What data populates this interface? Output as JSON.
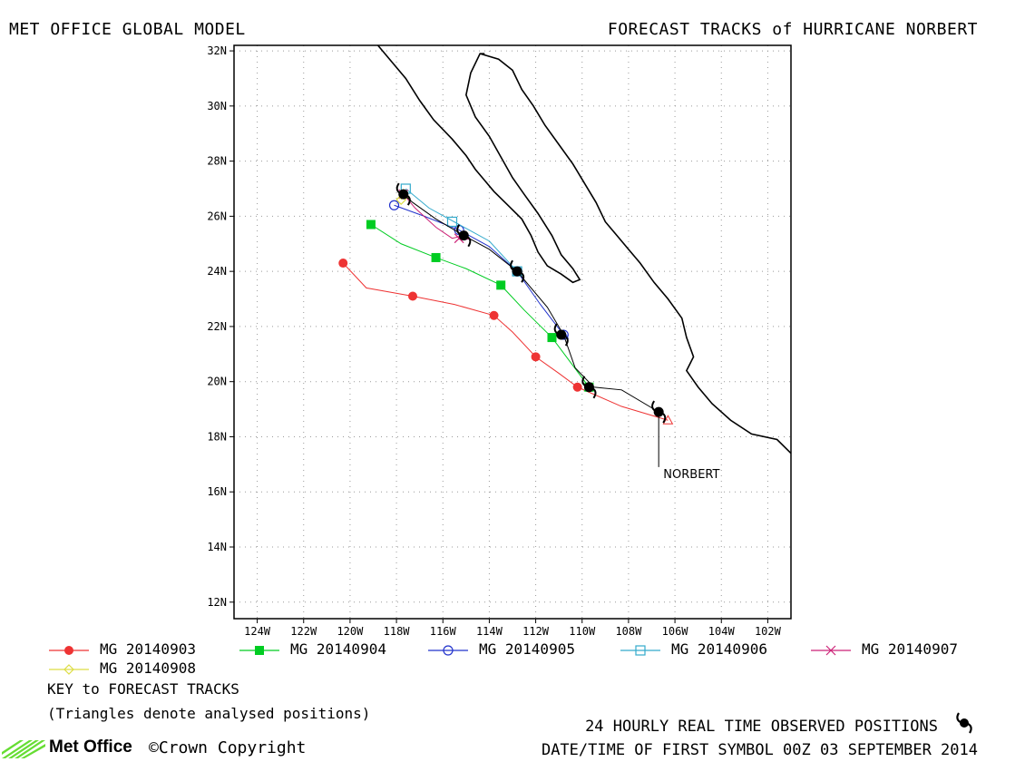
{
  "header": {
    "left_title": "MET OFFICE GLOBAL MODEL",
    "right_title": "FORECAST TRACKS of HURRICANE NORBERT"
  },
  "map": {
    "lon_labels": [
      "124W",
      "122W",
      "120W",
      "118W",
      "116W",
      "114W",
      "112W",
      "110W",
      "108W",
      "106W",
      "104W",
      "102W"
    ],
    "lon_values": [
      -124,
      -122,
      -120,
      -118,
      -116,
      -114,
      -112,
      -110,
      -108,
      -106,
      -104,
      -102
    ],
    "lat_labels": [
      "12N",
      "14N",
      "16N",
      "18N",
      "20N",
      "22N",
      "24N",
      "26N",
      "28N",
      "30N",
      "32N"
    ],
    "lat_values": [
      12,
      14,
      16,
      18,
      20,
      22,
      24,
      26,
      28,
      30,
      32
    ],
    "lon_range": [
      -125.0,
      -101.0
    ],
    "lat_range": [
      11.4,
      32.2
    ],
    "storm_label": "NORBERT",
    "storm_label_pos": [
      -106.5,
      16.5
    ]
  },
  "observed_track": [
    [
      -106.7,
      16.9
    ],
    [
      -106.7,
      18.6
    ],
    [
      -106.7,
      18.9
    ],
    [
      -108.3,
      19.7
    ],
    [
      -109.5,
      19.8
    ],
    [
      -110.3,
      20.5
    ],
    [
      -110.8,
      21.7
    ],
    [
      -111.5,
      22.7
    ],
    [
      -112.8,
      24.0
    ],
    [
      -114.0,
      24.8
    ],
    [
      -115.1,
      25.3
    ],
    [
      -116.3,
      25.9
    ],
    [
      -117.3,
      26.5
    ],
    [
      -117.7,
      26.8
    ]
  ],
  "observed_symbols": [
    [
      -106.7,
      18.9
    ],
    [
      -109.7,
      19.8
    ],
    [
      -110.9,
      21.7
    ],
    [
      -112.8,
      24.0
    ],
    [
      -115.1,
      25.3
    ],
    [
      -117.7,
      26.8
    ]
  ],
  "forecasts": [
    {
      "name": "MG 20140903",
      "color": "#ee3333",
      "marker": "dot",
      "track": [
        [
          -106.3,
          18.6
        ],
        [
          -108.3,
          19.1
        ],
        [
          -110.2,
          19.8
        ],
        [
          -111.0,
          20.3
        ],
        [
          -112.0,
          20.9
        ],
        [
          -113.0,
          21.8
        ],
        [
          -113.8,
          22.4
        ],
        [
          -115.5,
          22.8
        ],
        [
          -117.3,
          23.1
        ],
        [
          -119.3,
          23.4
        ],
        [
          -120.3,
          24.3
        ]
      ],
      "symbols": [
        [
          -110.2,
          19.8
        ],
        [
          -112.0,
          20.9
        ],
        [
          -113.8,
          22.4
        ],
        [
          -117.3,
          23.1
        ],
        [
          -120.3,
          24.3
        ]
      ]
    },
    {
      "name": "MG 20140904",
      "color": "#00cc22",
      "marker": "square",
      "track": [
        [
          -109.7,
          19.8
        ],
        [
          -110.5,
          20.7
        ],
        [
          -111.3,
          21.6
        ],
        [
          -112.5,
          22.6
        ],
        [
          -113.5,
          23.5
        ],
        [
          -115.0,
          24.1
        ],
        [
          -116.3,
          24.5
        ],
        [
          -117.8,
          25.0
        ],
        [
          -119.1,
          25.7
        ]
      ],
      "symbols": [
        [
          -109.7,
          19.8
        ],
        [
          -111.3,
          21.6
        ],
        [
          -113.5,
          23.5
        ],
        [
          -116.3,
          24.5
        ],
        [
          -119.1,
          25.7
        ]
      ]
    },
    {
      "name": "MG 20140905",
      "color": "#2233cc",
      "marker": "circle",
      "track": [
        [
          -110.8,
          21.7
        ],
        [
          -111.8,
          22.8
        ],
        [
          -112.8,
          24.0
        ],
        [
          -114.0,
          24.9
        ],
        [
          -115.3,
          25.5
        ],
        [
          -116.8,
          26.0
        ],
        [
          -118.1,
          26.4
        ]
      ],
      "symbols": [
        [
          -110.8,
          21.7
        ],
        [
          -112.8,
          24.0
        ],
        [
          -115.3,
          25.5
        ],
        [
          -118.1,
          26.4
        ]
      ]
    },
    {
      "name": "MG 20140906",
      "color": "#33aacc",
      "marker": "opensquare",
      "track": [
        [
          -112.8,
          24.0
        ],
        [
          -114.0,
          25.1
        ],
        [
          -115.3,
          25.7
        ],
        [
          -116.6,
          26.3
        ],
        [
          -117.6,
          27.0
        ]
      ],
      "symbols": [
        [
          -112.8,
          24.0
        ],
        [
          -115.6,
          25.8
        ],
        [
          -117.6,
          27.0
        ]
      ]
    },
    {
      "name": "MG 20140907",
      "color": "#cc2277",
      "marker": "cross",
      "track": [
        [
          -115.1,
          25.3
        ],
        [
          -115.6,
          25.2
        ],
        [
          -116.3,
          25.6
        ],
        [
          -117.2,
          26.3
        ],
        [
          -117.7,
          26.8
        ]
      ],
      "symbols": [
        [
          -115.3,
          25.2
        ],
        [
          -117.7,
          26.8
        ]
      ]
    },
    {
      "name": "MG 20140908",
      "color": "#dddd44",
      "marker": "diamond",
      "track": [
        [
          -117.7,
          26.8
        ],
        [
          -117.8,
          26.6
        ]
      ],
      "symbols": [
        [
          -117.8,
          26.6
        ]
      ]
    }
  ],
  "legend": {
    "key_title": "KEY to FORECAST TRACKS",
    "triangles_note": "(Triangles denote analysed positions)"
  },
  "footer": {
    "observed_positions": "24 HOURLY REAL TIME OBSERVED POSITIONS",
    "first_symbol": "DATE/TIME OF FIRST SYMBOL 00Z 03 SEPTEMBER 2014",
    "brand": "Met Office",
    "copyright": "©Crown Copyright"
  },
  "colors": {
    "coast": "#000000",
    "grid": "#999999",
    "frame": "#000000",
    "logo": "#66dd33"
  }
}
